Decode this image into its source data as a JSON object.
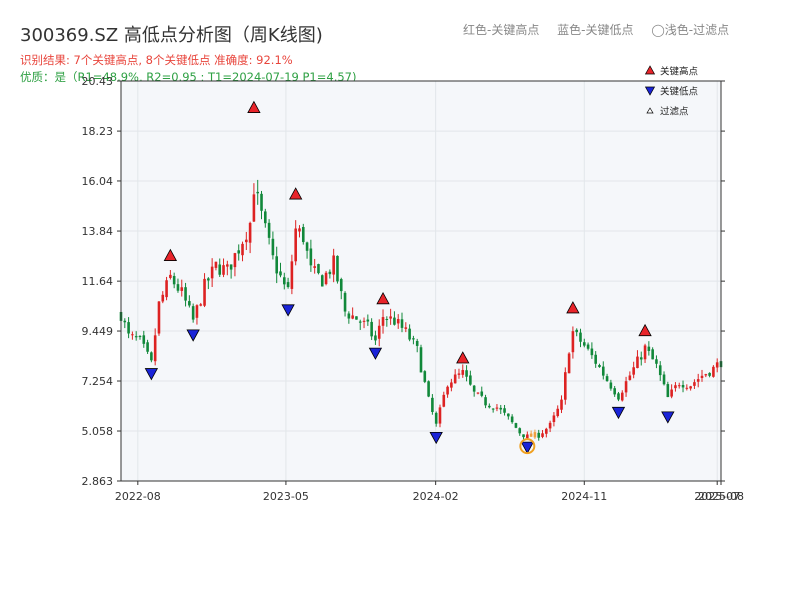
{
  "header": {
    "title": "300369.SZ 高低点分析图（周K线图)",
    "legend_red": "红色-关键高点",
    "legend_blue": "蓝色-关键低点",
    "legend_light": "◯浅色-过滤点",
    "result_line": "识别结果: 7个关键高点, 8个关键低点   准确度: 92.1%",
    "quality_line": "优质：是（R1=48.9%, R2=0.95 ; T1=2024-07-19 P1=4.57)"
  },
  "colors": {
    "up_candle": "#dd2222",
    "down_candle": "#11883a",
    "high_marker": "#e8242a",
    "low_marker": "#1a24d8",
    "highlight_ring": "#f0a020",
    "plot_bg": "#f5f7fa",
    "grid": "#e2e6ea"
  },
  "chart_data": {
    "type": "candlestick",
    "ylim": [
      2.863,
      20.43
    ],
    "yticks": [
      "20.43",
      "18.23",
      "16.04",
      "13.84",
      "11.64",
      "9.449",
      "7.254",
      "5.058",
      "2.863"
    ],
    "xlim": [
      "2022-07-01",
      "2025-07-11"
    ],
    "xticks": [
      {
        "date": "2022-08-01",
        "label": "2022-08"
      },
      {
        "date": "2023-05-01",
        "label": "2023-05"
      },
      {
        "date": "2024-02-01",
        "label": "2024-02"
      },
      {
        "date": "2024-11-01",
        "label": "2024-11"
      },
      {
        "date": "2025-07-04",
        "label": "2025-07"
      },
      {
        "date": "2025-08-01",
        "label": "2025-08"
      }
    ],
    "legend": [
      {
        "name": "关键高点",
        "marker": "triangle-up"
      },
      {
        "name": "关键低点",
        "marker": "triangle-down"
      },
      {
        "name": "过滤点",
        "marker": "triangle-up-small"
      }
    ],
    "legend_position": "top-right",
    "grid": true,
    "key_highs": [
      {
        "date": "2022-09-30",
        "price": 12.5
      },
      {
        "date": "2023-03-03",
        "price": 19.0
      },
      {
        "date": "2023-05-19",
        "price": 15.2
      },
      {
        "date": "2023-10-27",
        "price": 10.6
      },
      {
        "date": "2024-03-22",
        "price": 8.0
      },
      {
        "date": "2024-10-11",
        "price": 10.2
      },
      {
        "date": "2025-02-21",
        "price": 9.2
      }
    ],
    "key_lows": [
      {
        "date": "2022-08-26",
        "price": 7.8
      },
      {
        "date": "2022-11-11",
        "price": 9.5
      },
      {
        "date": "2023-05-05",
        "price": 10.6
      },
      {
        "date": "2023-10-13",
        "price": 8.7
      },
      {
        "date": "2024-02-02",
        "price": 5.0
      },
      {
        "date": "2024-07-19",
        "price": 4.57
      },
      {
        "date": "2025-01-03",
        "price": 6.1
      },
      {
        "date": "2025-04-04",
        "price": 5.9
      }
    ],
    "highlighted_point": {
      "date": "2024-07-19",
      "price": 4.57
    },
    "weekly_close_anchors": [
      [
        "2022-07-01",
        10.2
      ],
      [
        "2022-07-15",
        9.2
      ],
      [
        "2022-08-05",
        9.0
      ],
      [
        "2022-08-26",
        8.0
      ],
      [
        "2022-09-09",
        10.6
      ],
      [
        "2022-09-30",
        11.8
      ],
      [
        "2022-10-21",
        11.1
      ],
      [
        "2022-11-11",
        9.9
      ],
      [
        "2022-12-02",
        11.4
      ],
      [
        "2022-12-23",
        12.3
      ],
      [
        "2023-01-13",
        12.1
      ],
      [
        "2023-02-03",
        13.1
      ],
      [
        "2023-02-24",
        14.2
      ],
      [
        "2023-03-03",
        15.8
      ],
      [
        "2023-03-17",
        14.5
      ],
      [
        "2023-04-07",
        12.6
      ],
      [
        "2023-04-28",
        11.4
      ],
      [
        "2023-05-05",
        11.2
      ],
      [
        "2023-05-19",
        13.9
      ],
      [
        "2023-06-02",
        13.6
      ],
      [
        "2023-06-16",
        12.1
      ],
      [
        "2023-07-07",
        11.7
      ],
      [
        "2023-07-28",
        12.4
      ],
      [
        "2023-08-18",
        10.3
      ],
      [
        "2023-09-08",
        10.0
      ],
      [
        "2023-09-29",
        9.6
      ],
      [
        "2023-10-13",
        9.0
      ],
      [
        "2023-10-27",
        10.1
      ],
      [
        "2023-11-17",
        9.9
      ],
      [
        "2023-12-08",
        9.4
      ],
      [
        "2023-12-29",
        8.6
      ],
      [
        "2024-01-19",
        6.4
      ],
      [
        "2024-02-02",
        5.3
      ],
      [
        "2024-02-23",
        7.2
      ],
      [
        "2024-03-22",
        7.6
      ],
      [
        "2024-04-12",
        6.7
      ],
      [
        "2024-05-03",
        6.3
      ],
      [
        "2024-05-24",
        6.1
      ],
      [
        "2024-06-14",
        5.6
      ],
      [
        "2024-07-05",
        5.0
      ],
      [
        "2024-07-19",
        4.8
      ],
      [
        "2024-08-09",
        4.9
      ],
      [
        "2024-08-30",
        5.3
      ],
      [
        "2024-09-20",
        6.3
      ],
      [
        "2024-10-04",
        8.7
      ],
      [
        "2024-10-11",
        9.4
      ],
      [
        "2024-11-01",
        8.8
      ],
      [
        "2024-11-22",
        8.1
      ],
      [
        "2024-12-13",
        7.3
      ],
      [
        "2025-01-03",
        6.6
      ],
      [
        "2025-01-24",
        7.5
      ],
      [
        "2025-02-21",
        8.7
      ],
      [
        "2025-03-14",
        7.9
      ],
      [
        "2025-04-04",
        6.5
      ],
      [
        "2025-04-25",
        7.2
      ],
      [
        "2025-05-16",
        7.1
      ],
      [
        "2025-06-06",
        7.5
      ],
      [
        "2025-06-27",
        7.8
      ],
      [
        "2025-07-11",
        8.1
      ]
    ]
  }
}
